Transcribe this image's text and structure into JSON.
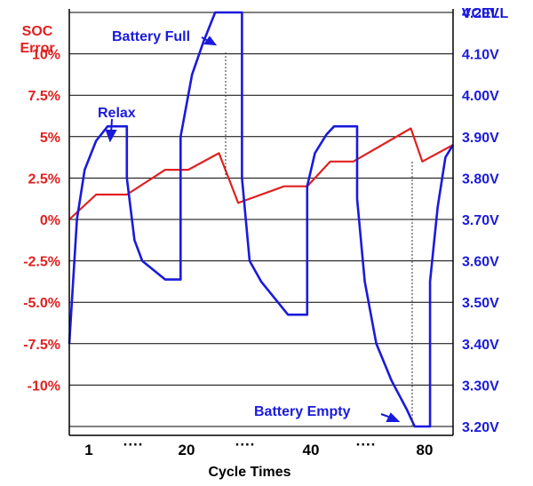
{
  "chart_data": {
    "type": "line",
    "xlabel": "Cycle Times",
    "x_tick_labels": [
      "1",
      "····",
      "20",
      "····",
      "40",
      "····",
      "80"
    ],
    "left_axis": {
      "label_lines": [
        "SOC",
        "Error"
      ],
      "tick_labels": [
        "10%",
        "7.5%",
        "5%",
        "2.5%",
        "0%",
        "-2.5%",
        "-5.0%",
        "-7.5%",
        "-10%"
      ],
      "tick_values": [
        10,
        7.5,
        5,
        2.5,
        0,
        -2.5,
        -5,
        -7.5,
        -10
      ],
      "range": [
        -12.5,
        12.5
      ],
      "color": "#e02020"
    },
    "right_axis": {
      "label": "VCELL",
      "tick_labels": [
        "4.20V",
        "4.10V",
        "4.00V",
        "3.90V",
        "3.80V",
        "3.70V",
        "3.60V",
        "3.50V",
        "3.40V",
        "3.30V",
        "3.20V"
      ],
      "tick_values": [
        4.2,
        4.1,
        4.0,
        3.9,
        3.8,
        3.7,
        3.6,
        3.5,
        3.4,
        3.3,
        3.2
      ],
      "range": [
        3.2,
        4.2
      ],
      "color": "#1a1adc"
    },
    "x_range": [
      0,
      100
    ],
    "grid": true,
    "series": [
      {
        "axis": "left",
        "color": "#e02020",
        "points": [
          [
            0,
            0
          ],
          [
            7,
            1.5
          ],
          [
            15,
            1.5
          ],
          [
            25,
            3
          ],
          [
            31,
            3
          ],
          [
            39,
            4
          ],
          [
            44,
            1
          ],
          [
            56,
            2
          ],
          [
            62,
            2
          ],
          [
            68,
            3.5
          ],
          [
            74,
            3.5
          ],
          [
            89,
            5.5
          ],
          [
            92,
            3.5
          ],
          [
            100,
            4.5
          ]
        ]
      },
      {
        "axis": "right",
        "color": "#1a1adc",
        "points": [
          [
            0,
            3.4
          ],
          [
            2,
            3.7
          ],
          [
            4,
            3.82
          ],
          [
            7,
            3.89
          ],
          [
            10,
            3.925
          ],
          [
            15,
            3.925
          ],
          [
            15,
            3.8
          ],
          [
            17,
            3.65
          ],
          [
            19,
            3.6
          ],
          [
            25,
            3.555
          ],
          [
            29,
            3.555
          ],
          [
            29,
            3.9
          ],
          [
            32,
            4.05
          ],
          [
            35,
            4.13
          ],
          [
            38,
            4.2
          ],
          [
            45,
            4.2
          ],
          [
            45,
            3.8
          ],
          [
            47,
            3.6
          ],
          [
            50,
            3.55
          ],
          [
            57,
            3.47
          ],
          [
            62,
            3.47
          ],
          [
            62,
            3.78
          ],
          [
            64,
            3.86
          ],
          [
            67,
            3.905
          ],
          [
            69,
            3.925
          ],
          [
            75,
            3.925
          ],
          [
            75,
            3.75
          ],
          [
            77,
            3.55
          ],
          [
            80,
            3.4
          ],
          [
            84,
            3.31
          ],
          [
            88,
            3.24
          ],
          [
            90,
            3.2
          ],
          [
            94,
            3.2
          ],
          [
            94,
            3.55
          ],
          [
            96,
            3.73
          ],
          [
            98,
            3.85
          ],
          [
            100,
            3.88
          ]
        ]
      }
    ],
    "annotations": [
      {
        "text": "Battery Full",
        "color": "#1a1adc"
      },
      {
        "text": "Relax",
        "color": "#1a1adc"
      },
      {
        "text": "Battery Empty",
        "color": "#1a1adc"
      }
    ]
  }
}
